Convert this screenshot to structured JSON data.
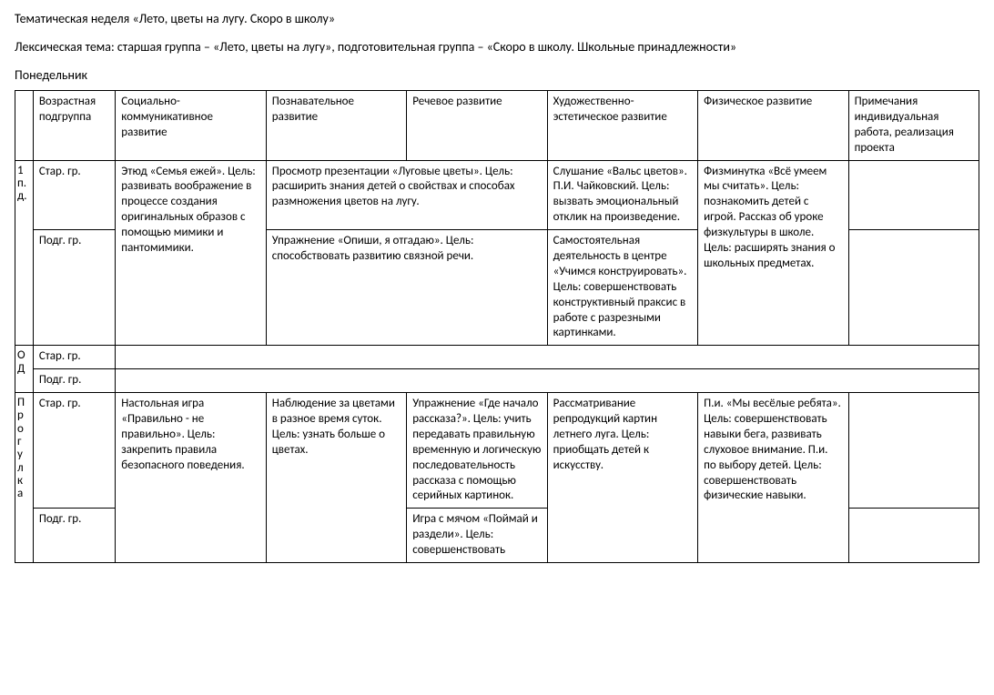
{
  "title": "Тематическая неделя «Лето, цветы на лугу. Скоро в школу»",
  "subtitle": "Лексическая тема: старшая группа – «Лето, цветы на лугу», подготовительная группа – «Скоро в школу. Школьные принадлежности»",
  "day": "Понедельник",
  "headers": {
    "age": "Возрастная подгруппа",
    "social": "Социально-коммуникативное развитие",
    "cognitive": "Познавательное развитие",
    "speech": "Речевое развитие",
    "art": "Художественно-эстетическое развитие",
    "physical": "Физическое развитие",
    "notes": "Примечания индивидуальная работа, реализация проекта"
  },
  "periods": {
    "p1_letters": [
      "1",
      "п.",
      "д."
    ],
    "od_letters": [
      "О",
      "Д"
    ],
    "walk_letters": [
      "П",
      "р",
      "о",
      "г",
      "у",
      "л",
      "к",
      "а"
    ]
  },
  "groups": {
    "senior": "Стар. гр.",
    "prep": "Подг. гр."
  },
  "cells": {
    "p1_sen_social": "Этюд «Семья ежей». Цель: развивать воображение в процессе создания оригинальных образов с помощью мимики и пантомимики.",
    "p1_sen_cog_speech": "Просмотр презентации «Луговые цветы». Цель: расширить знания детей о свойствах и способах размножения цветов на лугу.",
    "p1_sen_art": "Слушание «Вальс цветов». П.И. Чайковский. Цель: вызвать эмоциональный отклик на произведение.",
    "p1_physical": "Физминутка «Всё умеем мы считать». Цель: познакомить детей с игрой. Рассказ об уроке физкультуры в школе. Цель: расширять знания о школьных предметах.",
    "p1_prep_cog_speech": "Упражнение «Опиши, я отгадаю». Цель: способствовать развитию связной речи.",
    "p1_prep_art": "Самостоятельная деятельность в центре «Учимся конструировать». Цель: совершенствовать конструктивный праксис в работе с разрезными картинками.",
    "walk_sen_social": "Настольная игра «Правильно - не правильно». Цель: закрепить правила безопасного поведения.",
    "walk_sen_cog": "Наблюдение за цветами в разное время суток. Цель: узнать больше о цветах.",
    "walk_sen_speech": "Упражнение «Где начало рассказа?». Цель: учить передавать правильную временную и логическую последовательность рассказа с помощью серийных картинок.",
    "walk_sen_art": "Рассматривание репродукций картин летнего луга. Цель: приобщать детей к искусству.",
    "walk_physical": "П.и. «Мы весёлые ребята». Цель: совершенствовать навыки бега, развивать слуховое внимание. П.и. по выбору детей. Цель: совершенствовать физические навыки.",
    "walk_prep_speech": "Игра с мячом «Поймай и раздели». Цель: совершенствовать"
  }
}
